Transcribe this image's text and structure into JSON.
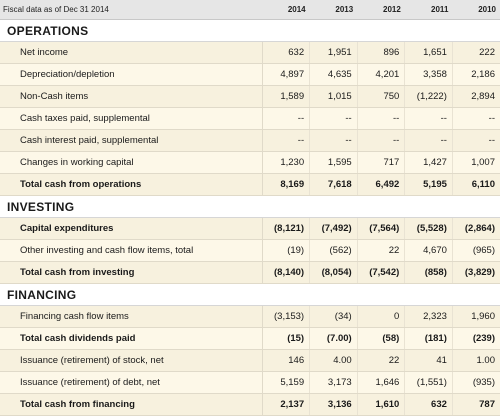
{
  "header": {
    "label": "Fiscal data as of Dec 31 2014",
    "years": [
      "2014",
      "2013",
      "2012",
      "2011",
      "2010"
    ]
  },
  "sections": [
    {
      "title": "OPERATIONS",
      "rows": [
        {
          "label": "Net income",
          "values": [
            "632",
            "1,951",
            "896",
            "1,651",
            "222"
          ],
          "bold": false
        },
        {
          "label": "Depreciation/depletion",
          "values": [
            "4,897",
            "4,635",
            "4,201",
            "3,358",
            "2,186"
          ],
          "bold": false
        },
        {
          "label": "Non-Cash items",
          "values": [
            "1,589",
            "1,015",
            "750",
            "(1,222)",
            "2,894"
          ],
          "bold": false
        },
        {
          "label": "Cash taxes paid, supplemental",
          "values": [
            "--",
            "--",
            "--",
            "--",
            "--"
          ],
          "bold": false
        },
        {
          "label": "Cash interest paid, supplemental",
          "values": [
            "--",
            "--",
            "--",
            "--",
            "--"
          ],
          "bold": false
        },
        {
          "label": "Changes in working capital",
          "values": [
            "1,230",
            "1,595",
            "717",
            "1,427",
            "1,007"
          ],
          "bold": false
        },
        {
          "label": "Total cash from operations",
          "values": [
            "8,169",
            "7,618",
            "6,492",
            "5,195",
            "6,110"
          ],
          "bold": true
        }
      ]
    },
    {
      "title": "INVESTING",
      "rows": [
        {
          "label": "Capital expenditures",
          "values": [
            "(8,121)",
            "(7,492)",
            "(7,564)",
            "(5,528)",
            "(2,864)"
          ],
          "bold": true
        },
        {
          "label": "Other investing and cash flow items, total",
          "values": [
            "(19)",
            "(562)",
            "22",
            "4,670",
            "(965)"
          ],
          "bold": false
        },
        {
          "label": "Total cash from investing",
          "values": [
            "(8,140)",
            "(8,054)",
            "(7,542)",
            "(858)",
            "(3,829)"
          ],
          "bold": true
        }
      ]
    },
    {
      "title": "FINANCING",
      "rows": [
        {
          "label": "Financing cash flow items",
          "values": [
            "(3,153)",
            "(34)",
            "0",
            "2,323",
            "1,960"
          ],
          "bold": false
        },
        {
          "label": "Total cash dividends paid",
          "values": [
            "(15)",
            "(7.00)",
            "(58)",
            "(181)",
            "(239)"
          ],
          "bold": true
        },
        {
          "label": "Issuance (retirement) of stock, net",
          "values": [
            "146",
            "4.00",
            "22",
            "41",
            "1.00"
          ],
          "bold": false
        },
        {
          "label": "Issuance (retirement) of debt, net",
          "values": [
            "5,159",
            "3,173",
            "1,646",
            "(1,551)",
            "(935)"
          ],
          "bold": false
        },
        {
          "label": "Total cash from financing",
          "values": [
            "2,137",
            "3,136",
            "1,610",
            "632",
            "787"
          ],
          "bold": true
        }
      ]
    }
  ]
}
